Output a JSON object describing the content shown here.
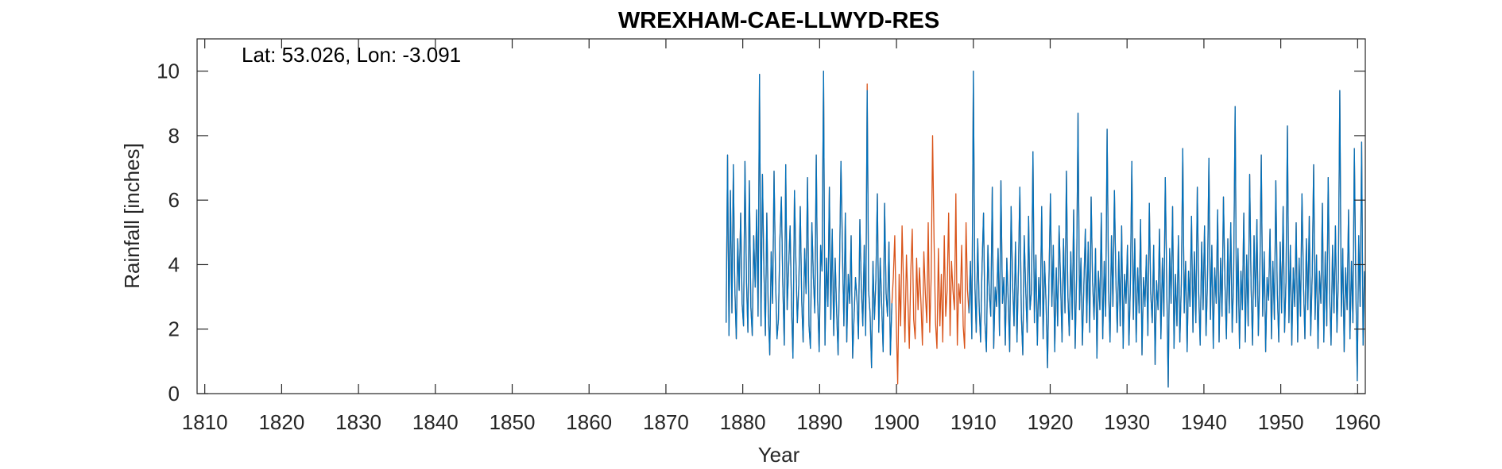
{
  "chart_data": {
    "type": "line",
    "title": "WREXHAM-CAE-LLWYD-RES",
    "annotation": "Lat: 53.026, Lon: -3.091",
    "xlabel": "Year",
    "ylabel": "Rainfall [inches]",
    "xlim": [
      1809,
      1961
    ],
    "ylim": [
      0,
      11
    ],
    "xticks": [
      1810,
      1820,
      1830,
      1840,
      1850,
      1860,
      1870,
      1880,
      1890,
      1900,
      1910,
      1920,
      1930,
      1940,
      1950,
      1960
    ],
    "yticks": [
      0,
      2,
      4,
      6,
      8,
      10
    ],
    "grid": false,
    "legend": "none",
    "series": [
      {
        "color": "#D95319",
        "style": "monthly",
        "x_start": 1877.83,
        "x_end": 1960.9,
        "values": [
          2.2,
          7.4,
          1.8,
          6.3,
          2.5,
          7.1,
          3.3,
          1.7,
          4.8,
          3.2,
          5.6,
          2.8,
          2.1,
          7.2,
          3.5,
          1.9,
          6.6,
          2.7,
          1.8,
          4.9,
          3.3,
          5.7,
          2.4,
          9.9,
          2.1,
          6.8,
          3.9,
          1.8,
          5.6,
          2.6,
          1.2,
          4.4,
          2.8,
          6.9,
          3.6,
          1.7,
          2.3,
          4.8,
          6.1,
          3.4,
          1.5,
          7.1,
          2.6,
          3.9,
          5.2,
          2.7,
          1.1,
          6.3,
          4.1,
          2.2,
          3.4,
          5.8,
          2.9,
          1.6,
          4.5,
          3.1,
          6.7,
          2.1,
          1.4,
          5.3,
          3.6,
          2.5,
          7.4,
          2.9,
          1.3,
          4.6,
          3.8,
          10.0,
          1.5,
          4.2,
          2.7,
          6.4,
          2.3,
          5.1,
          1.8,
          4.2,
          2.6,
          1.2,
          3.9,
          7.2,
          4.4,
          2.1,
          5.6,
          1.6,
          3.7,
          2.8,
          4.9,
          1.1,
          2.4,
          3.6,
          2.9,
          1.7,
          5.4,
          3.3,
          2.1,
          4.6,
          1.8,
          9.6,
          3.2,
          2.5,
          0.8,
          4.1,
          2.3,
          3.5,
          6.2,
          1.9,
          4.2,
          2.7,
          1.3,
          5.9,
          3.1,
          2.4,
          4.7,
          1.2,
          2.8,
          3.6,
          4.9,
          2.2,
          0.3,
          3.7,
          2.1,
          5.2,
          3.4,
          1.6,
          4.3,
          2.9,
          1.4,
          3.8,
          5.1,
          2.3,
          1.7,
          4.2,
          2.6,
          3.9,
          2.8,
          1.5,
          4.4,
          3.1,
          2.2,
          5.3,
          1.9,
          3.6,
          8.0,
          4.8,
          2.2,
          1.4,
          4.5,
          2.1,
          3.7,
          1.6,
          4.9,
          2.4,
          3.2,
          5.6,
          1.8,
          4.1,
          3.2,
          2.6,
          6.2,
          1.5,
          3.4,
          2.8,
          4.6,
          2.1,
          1.4,
          5.3,
          3.2,
          2.5,
          4.1,
          1.7,
          10.0,
          3.5,
          1.9,
          4.8,
          2.7,
          1.6,
          3.9,
          5.6,
          2.2,
          1.3,
          4.6,
          3.1,
          2.4,
          6.4,
          1.4,
          3.3,
          2.7,
          4.5,
          1.8,
          6.6,
          2.8,
          3.6,
          1.5,
          4.2,
          2.9,
          1.3,
          5.8,
          3.4,
          2.1,
          4.7,
          1.6,
          3.8,
          6.4,
          2.4,
          1.2,
          4.9,
          3.3,
          1.9,
          5.5,
          2.6,
          3.2,
          7.5,
          2.2,
          4.3,
          1.5,
          3.6,
          2.4,
          5.8,
          1.7,
          4.1,
          2.8,
          0.8,
          3.5,
          6.2,
          2.7,
          4.6,
          1.3,
          3.9,
          2.1,
          5.2,
          3.4,
          1.6,
          4.8,
          2.5,
          6.9,
          3.1,
          1.8,
          4.4,
          2.3,
          5.7,
          1.4,
          3.6,
          8.7,
          2.6,
          4.2,
          1.5,
          3.3,
          5.1,
          2.2,
          4.7,
          1.9,
          6.1,
          3.5,
          2.3,
          4.5,
          1.1,
          3.8,
          2.6,
          5.6,
          1.7,
          4.1,
          2.4,
          8.2,
          3.2,
          1.6,
          4.9,
          2.7,
          6.3,
          3.6,
          1.9,
          4.4,
          2.1,
          5.2,
          1.4,
          3.7,
          2.8,
          4.6,
          1.5,
          3.4,
          7.2,
          2.3,
          4.8,
          1.6,
          3.9,
          2.5,
          5.4,
          1.2,
          3.6,
          2.7,
          4.3,
          1.8,
          5.9,
          3.1,
          2.2,
          4.6,
          0.9,
          3.5,
          2.6,
          5.1,
          1.7,
          4.2,
          2.4,
          6.7,
          3.3,
          0.2,
          4.5,
          2.8,
          5.8,
          1.4,
          3.7,
          2.1,
          4.9,
          1.6,
          3.4,
          7.6,
          2.5,
          4.1,
          1.3,
          3.8,
          2.7,
          5.5,
          1.9,
          4.4,
          2.2,
          6.4,
          3.1,
          1.5,
          4.7,
          2.6,
          5.2,
          1.8,
          3.5,
          7.3,
          2.3,
          4.6,
          1.4,
          3.9,
          2.8,
          5.7,
          1.6,
          4.2,
          2.4,
          6.1,
          3.4,
          1.7,
          4.8,
          2.5,
          5.3,
          1.9,
          3.6,
          8.9,
          2.2,
          4.5,
          1.4,
          3.8,
          2.6,
          5.6,
          1.6,
          4.3,
          2.1,
          6.8,
          3.3,
          1.5,
          4.9,
          2.7,
          5.4,
          1.8,
          3.7,
          7.4,
          2.4,
          4.4,
          1.3,
          3.6,
          2.9,
          5.1,
          1.7,
          4.1,
          2.3,
          6.6,
          3.2,
          1.6,
          4.7,
          2.5,
          5.8,
          1.9,
          3.5,
          8.3,
          2.2,
          4.6,
          1.5,
          3.9,
          2.7,
          5.3,
          1.6,
          4.2,
          2.4,
          6.2,
          3.4,
          1.7,
          4.8,
          2.6,
          5.5,
          1.8,
          3.7,
          7.1,
          2.3,
          4.3,
          1.4,
          3.8,
          2.8,
          5.9,
          1.6,
          4.4,
          2.1,
          6.7,
          3.1,
          1.5,
          4.6,
          2.5,
          5.2,
          1.9,
          3.6,
          9.4,
          2.4,
          4.5,
          1.3,
          3.9,
          2.6,
          5.7,
          1.7,
          4.1,
          2.2,
          7.6,
          3.3,
          0.4,
          4.9,
          2.7,
          7.8,
          1.5,
          3.8
        ]
      },
      {
        "color": "#0072BD",
        "style": "monthly",
        "x_start": 1877.83,
        "x_end": 1960.9,
        "gaps": [
          [
            1899.5,
            1909.3
          ]
        ],
        "values": [
          2.2,
          7.4,
          1.8,
          6.3,
          2.5,
          7.1,
          3.3,
          1.7,
          4.8,
          3.2,
          5.6,
          2.8,
          2.1,
          7.2,
          3.5,
          1.9,
          6.6,
          2.7,
          1.8,
          4.9,
          3.3,
          5.7,
          2.4,
          9.9,
          2.1,
          6.8,
          3.9,
          1.8,
          5.6,
          2.6,
          1.2,
          4.4,
          2.8,
          6.9,
          3.6,
          1.7,
          2.3,
          4.8,
          6.1,
          3.4,
          1.5,
          7.1,
          2.6,
          3.9,
          5.2,
          2.7,
          1.1,
          6.3,
          4.1,
          2.2,
          3.4,
          5.8,
          2.9,
          1.6,
          4.5,
          3.1,
          6.7,
          2.1,
          1.4,
          5.3,
          3.6,
          2.5,
          7.4,
          2.9,
          1.3,
          4.6,
          3.8,
          10.0,
          1.5,
          4.2,
          2.7,
          6.4,
          2.3,
          5.1,
          1.8,
          4.2,
          2.6,
          1.2,
          3.9,
          7.2,
          4.4,
          2.1,
          5.6,
          1.6,
          3.7,
          2.8,
          4.9,
          1.1,
          2.4,
          3.6,
          2.9,
          1.7,
          5.4,
          3.3,
          2.1,
          4.6,
          1.8,
          9.4,
          3.2,
          2.5,
          0.8,
          4.1,
          2.3,
          3.5,
          6.2,
          1.9,
          4.2,
          2.7,
          1.3,
          5.9,
          3.1,
          2.4,
          4.7,
          1.2,
          2.8,
          3.6,
          4.9,
          2.2,
          0.3,
          3.7,
          2.1,
          5.2,
          3.4,
          1.6,
          4.3,
          2.9,
          1.4,
          3.8,
          5.1,
          2.3,
          1.7,
          4.2,
          2.6,
          3.9,
          2.8,
          1.5,
          4.4,
          3.1,
          2.2,
          5.3,
          1.9,
          3.6,
          8.0,
          4.8,
          2.2,
          1.4,
          4.5,
          2.1,
          3.7,
          1.6,
          4.9,
          2.4,
          3.2,
          5.6,
          1.8,
          4.1,
          3.2,
          2.6,
          6.2,
          1.5,
          3.4,
          2.8,
          4.6,
          2.1,
          1.4,
          5.3,
          3.2,
          2.5,
          4.1,
          1.7,
          10.0,
          3.5,
          1.9,
          4.8,
          2.7,
          1.6,
          3.9,
          5.6,
          2.2,
          1.3,
          4.6,
          3.1,
          2.4,
          6.4,
          1.4,
          3.3,
          2.7,
          4.5,
          1.8,
          6.6,
          2.8,
          3.6,
          1.5,
          4.2,
          2.9,
          1.3,
          5.8,
          3.4,
          2.1,
          4.7,
          1.6,
          3.8,
          6.4,
          2.4,
          1.2,
          4.9,
          3.3,
          1.9,
          5.5,
          2.6,
          3.2,
          7.5,
          2.2,
          4.3,
          1.5,
          3.6,
          2.4,
          5.8,
          1.7,
          4.1,
          2.8,
          0.8,
          3.5,
          6.2,
          2.7,
          4.6,
          1.3,
          3.9,
          2.1,
          5.2,
          3.4,
          1.6,
          4.8,
          2.5,
          6.9,
          3.1,
          1.8,
          4.4,
          2.3,
          5.7,
          1.4,
          3.6,
          8.7,
          2.6,
          4.2,
          1.5,
          3.3,
          5.1,
          2.2,
          4.7,
          1.9,
          6.1,
          3.5,
          2.3,
          4.5,
          1.1,
          3.8,
          2.6,
          5.6,
          1.7,
          4.1,
          2.4,
          8.2,
          3.2,
          1.6,
          4.9,
          2.7,
          6.3,
          3.6,
          1.9,
          4.4,
          2.1,
          5.2,
          1.4,
          3.7,
          2.8,
          4.6,
          1.5,
          3.4,
          7.2,
          2.3,
          4.8,
          1.6,
          3.9,
          2.5,
          5.4,
          1.2,
          3.6,
          2.7,
          4.3,
          1.8,
          5.9,
          3.1,
          2.2,
          4.6,
          0.9,
          3.5,
          2.6,
          5.1,
          1.7,
          4.2,
          2.4,
          6.7,
          3.3,
          0.2,
          4.5,
          2.8,
          5.8,
          1.4,
          3.7,
          2.1,
          4.9,
          1.6,
          3.4,
          7.6,
          2.5,
          4.1,
          1.3,
          3.8,
          2.7,
          5.5,
          1.9,
          4.4,
          2.2,
          6.4,
          3.1,
          1.5,
          4.7,
          2.6,
          5.2,
          1.8,
          3.5,
          7.3,
          2.3,
          4.6,
          1.4,
          3.9,
          2.8,
          5.7,
          1.6,
          4.2,
          2.4,
          6.1,
          3.4,
          1.7,
          4.8,
          2.5,
          5.3,
          1.9,
          3.6,
          8.9,
          2.2,
          4.5,
          1.4,
          3.8,
          2.6,
          5.6,
          1.6,
          4.3,
          2.1,
          6.8,
          3.3,
          1.5,
          4.9,
          2.7,
          5.4,
          1.8,
          3.7,
          7.4,
          2.4,
          4.4,
          1.3,
          3.6,
          2.9,
          5.1,
          1.7,
          4.1,
          2.3,
          6.6,
          3.2,
          1.6,
          4.7,
          2.5,
          5.8,
          1.9,
          3.5,
          8.3,
          2.2,
          4.6,
          1.5,
          3.9,
          2.7,
          5.3,
          1.6,
          4.2,
          2.4,
          6.2,
          3.4,
          1.7,
          4.8,
          2.6,
          5.5,
          1.8,
          3.7,
          7.1,
          2.3,
          4.3,
          1.4,
          3.8,
          2.8,
          5.9,
          1.6,
          4.4,
          2.1,
          6.7,
          3.1,
          1.5,
          4.6,
          2.5,
          5.2,
          1.9,
          3.6,
          9.4,
          2.4,
          4.5,
          1.3,
          3.9,
          2.6,
          5.7,
          1.7,
          4.1,
          2.2,
          7.6,
          3.3,
          0.4,
          4.9,
          2.7,
          7.8,
          1.5,
          3.8
        ]
      }
    ]
  }
}
